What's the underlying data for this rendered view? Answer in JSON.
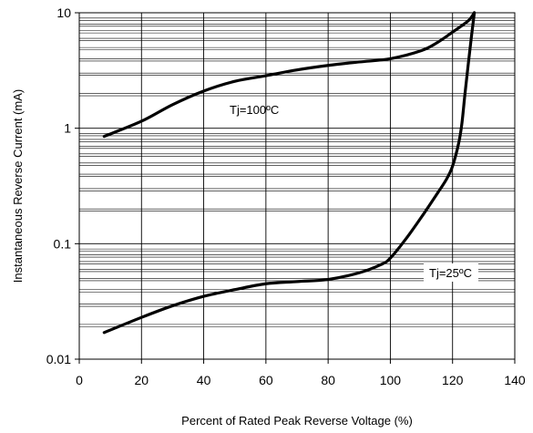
{
  "chart_data": {
    "type": "line",
    "title": "",
    "xlabel": "Percent of Rated Peak Reverse Voltage (%)",
    "ylabel": "Instantaneous Reverse Current (mA)",
    "xlim": [
      0,
      140
    ],
    "ylim": [
      0.01,
      10
    ],
    "yscale": "log",
    "grid": true,
    "x_ticks": [
      "0",
      "20",
      "40",
      "60",
      "80",
      "100",
      "120",
      "140"
    ],
    "y_ticks": [
      "0.01",
      "0.1",
      "1",
      "10"
    ],
    "series": [
      {
        "x": [
          8,
          20,
          30,
          40,
          50,
          60,
          70,
          80,
          90,
          100,
          110,
          115,
          120,
          125,
          127
        ],
        "y": [
          0.85,
          1.15,
          1.6,
          2.1,
          2.55,
          2.85,
          3.2,
          3.5,
          3.75,
          4.0,
          4.7,
          5.5,
          6.8,
          8.5,
          10.0
        ]
      },
      {
        "x": [
          8,
          20,
          30,
          40,
          50,
          60,
          70,
          80,
          90,
          97,
          100,
          105,
          110,
          115,
          118,
          120,
          122,
          123,
          124,
          125,
          126,
          127
        ],
        "y": [
          0.017,
          0.023,
          0.029,
          0.035,
          0.04,
          0.045,
          0.047,
          0.049,
          0.056,
          0.066,
          0.075,
          0.11,
          0.17,
          0.27,
          0.36,
          0.47,
          0.75,
          1.1,
          2.0,
          3.5,
          6.0,
          10.0
        ]
      }
    ],
    "annotations": [
      {
        "text": "Tj=100ºC",
        "near": "upper curve"
      },
      {
        "text": "Tj=25ºC",
        "near": "lower curve"
      }
    ]
  }
}
